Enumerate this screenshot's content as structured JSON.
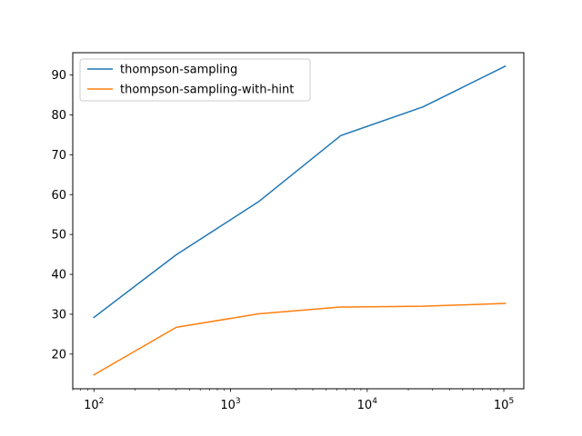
{
  "chart_data": {
    "type": "line",
    "title": "",
    "xlabel": "",
    "ylabel": "",
    "x_scale": "log",
    "xlim": [
      70,
      140000
    ],
    "ylim": [
      11.3,
      95.6
    ],
    "x": [
      100,
      400,
      1600,
      6400,
      25600,
      102400
    ],
    "series": [
      {
        "name": "thompson-sampling",
        "color": "#1f77b4",
        "values": [
          29.2,
          44.9,
          58.2,
          74.8,
          82.0,
          92.2
        ]
      },
      {
        "name": "thompson-sampling-with-hint",
        "color": "#ff7f0e",
        "values": [
          14.8,
          26.7,
          30.1,
          31.8,
          32.0,
          32.7
        ]
      }
    ],
    "x_major_ticks": [
      100,
      1000,
      10000,
      100000
    ],
    "x_tick_labels": [
      {
        "base": "10",
        "exp": "2"
      },
      {
        "base": "10",
        "exp": "3"
      },
      {
        "base": "10",
        "exp": "4"
      },
      {
        "base": "10",
        "exp": "5"
      }
    ],
    "y_ticks": [
      20,
      30,
      40,
      50,
      60,
      70,
      80,
      90
    ],
    "y_tick_labels": [
      "20",
      "30",
      "40",
      "50",
      "60",
      "70",
      "80",
      "90"
    ],
    "legend": {
      "placement": "upper-left"
    },
    "grid": false
  }
}
